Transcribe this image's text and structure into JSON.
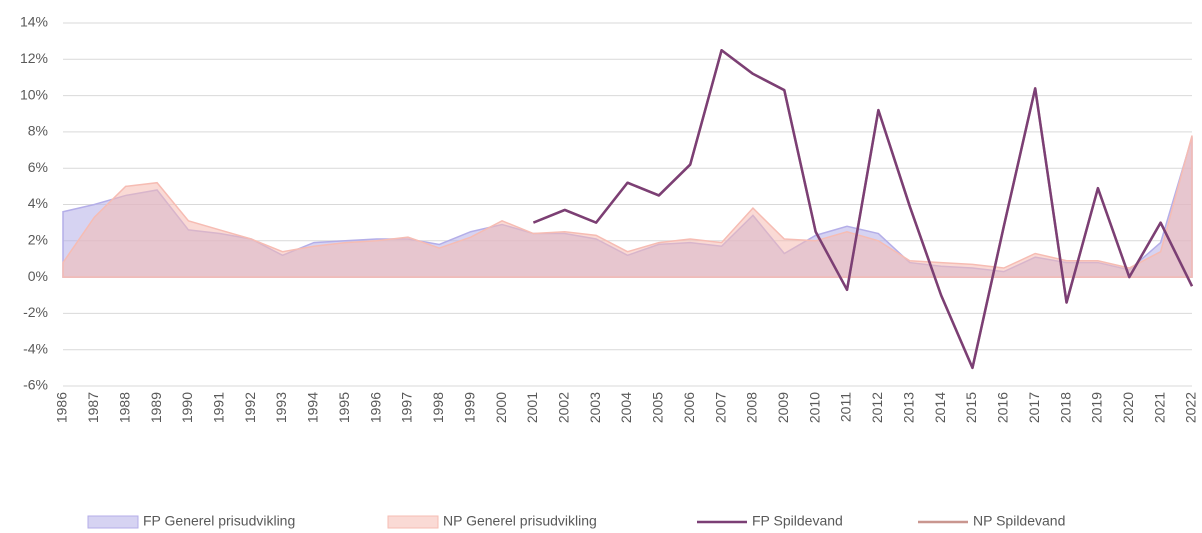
{
  "chart_data": {
    "type": "area_line",
    "categories": [
      "1986",
      "1987",
      "1988",
      "1989",
      "1990",
      "1991",
      "1992",
      "1993",
      "1994",
      "1995",
      "1996",
      "1997",
      "1998",
      "1999",
      "2000",
      "2001",
      "2002",
      "2003",
      "2004",
      "2005",
      "2006",
      "2007",
      "2008",
      "2009",
      "2010",
      "2011",
      "2012",
      "2013",
      "2014",
      "2015",
      "2016",
      "2017",
      "2018",
      "2019",
      "2020",
      "2021",
      "2022"
    ],
    "series": [
      {
        "name": "FP Generel prisudvikling",
        "kind": "area",
        "color": "#b4aee8",
        "values": [
          3.6,
          4.0,
          4.5,
          4.8,
          2.6,
          2.4,
          2.1,
          1.2,
          1.9,
          2.0,
          2.1,
          2.1,
          1.8,
          2.5,
          2.9,
          2.4,
          2.4,
          2.1,
          1.2,
          1.8,
          1.9,
          1.7,
          3.4,
          1.3,
          2.3,
          2.8,
          2.4,
          0.8,
          0.6,
          0.5,
          0.3,
          1.1,
          0.8,
          0.8,
          0.4,
          1.9,
          7.7
        ]
      },
      {
        "name": "NP Generel prisudvikling",
        "kind": "area",
        "color": "#f6bcb3",
        "values": [
          0.8,
          3.3,
          5.0,
          5.2,
          3.1,
          2.6,
          2.1,
          1.4,
          1.7,
          1.9,
          2.0,
          2.2,
          1.6,
          2.2,
          3.1,
          2.4,
          2.5,
          2.3,
          1.4,
          1.9,
          2.1,
          1.9,
          3.8,
          2.1,
          2.0,
          2.5,
          2.0,
          0.9,
          0.8,
          0.7,
          0.5,
          1.3,
          0.9,
          0.9,
          0.5,
          1.4,
          7.8
        ]
      },
      {
        "name": "NP Spildevand",
        "kind": "line",
        "color": "#c9968f",
        "values": [
          null,
          null,
          null,
          null,
          null,
          null,
          null,
          null,
          null,
          null,
          null,
          null,
          null,
          null,
          null,
          3.0,
          3.7,
          3.0,
          5.2,
          4.5,
          6.2,
          12.5,
          11.2,
          10.3,
          2.5,
          -0.7,
          9.2,
          3.9,
          -1.0,
          -5.0,
          2.8,
          10.4,
          -1.4,
          4.9,
          0.0,
          3.0,
          -0.5
        ]
      },
      {
        "name": "FP Spildevand",
        "kind": "line",
        "color": "#7b3f75",
        "values": [
          null,
          null,
          null,
          null,
          null,
          null,
          null,
          null,
          null,
          null,
          null,
          null,
          null,
          null,
          null,
          3.0,
          3.7,
          3.0,
          5.2,
          4.5,
          6.2,
          12.5,
          11.2,
          10.3,
          2.5,
          -0.7,
          9.2,
          3.9,
          -1.0,
          -5.0,
          2.8,
          10.4,
          -1.4,
          4.9,
          0.0,
          3.0,
          -0.5
        ]
      }
    ],
    "legend_order": [
      0,
      1,
      3,
      2
    ],
    "ylim": [
      -6,
      14
    ],
    "yticks": [
      {
        "value": -6,
        "label": "-6%"
      },
      {
        "value": -4,
        "label": "-4%"
      },
      {
        "value": -2,
        "label": "-2%"
      },
      {
        "value": 0,
        "label": "0%"
      },
      {
        "value": 2,
        "label": "2%"
      },
      {
        "value": 4,
        "label": "4%"
      },
      {
        "value": 6,
        "label": "6%"
      },
      {
        "value": 8,
        "label": "8%"
      },
      {
        "value": 10,
        "label": "10%"
      },
      {
        "value": 12,
        "label": "12%"
      },
      {
        "value": 14,
        "label": "14%"
      }
    ],
    "grid": true,
    "legend": "bottom"
  }
}
